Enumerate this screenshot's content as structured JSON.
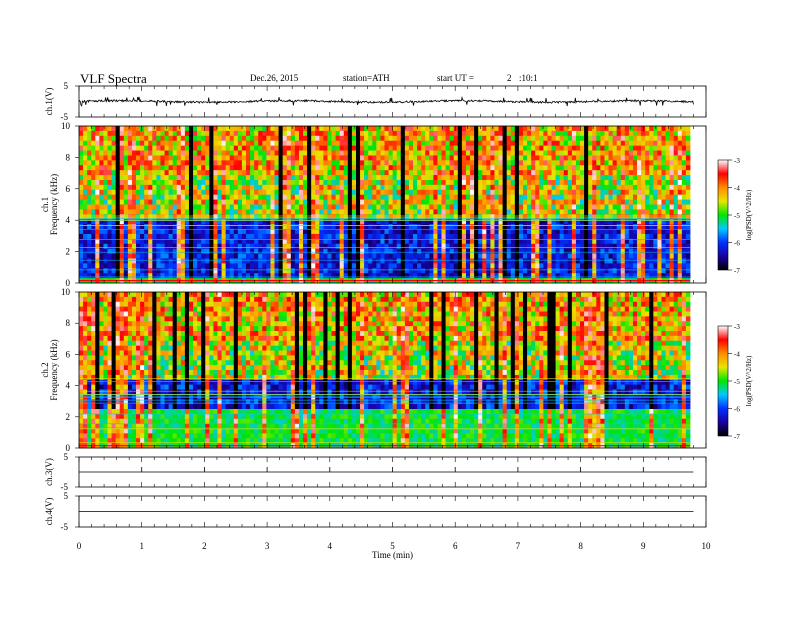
{
  "header": {
    "title": "VLF  Spectra",
    "date": "Dec.26, 2015",
    "station": "station=ATH",
    "start_label": "start  UT  =",
    "start_h": "2",
    "start_ms": ":10:1"
  },
  "colorbar": {
    "label": "log(PSD(V^2/Hz)",
    "ticks": [
      "-3",
      "-4",
      "-5",
      "-6",
      "-7"
    ],
    "stops": [
      "#000000",
      "#1a00a0",
      "#0030ff",
      "#00c8ff",
      "#00e600",
      "#e6e600",
      "#ff8c00",
      "#ff0000",
      "#ffffff"
    ]
  },
  "chart_data": [
    {
      "type": "line",
      "panel": "ch1-waveform",
      "ylabel": "ch.1(V)",
      "ylim": [
        -5,
        5
      ],
      "yticks": [
        "5",
        "-5"
      ],
      "xlim": [
        0,
        10
      ],
      "signal_range": [
        -1.5,
        1.5
      ],
      "baseline": 0,
      "x_end": 9.8
    },
    {
      "type": "heatmap",
      "panel": "ch1-spectrogram",
      "ylabel_top": "ch.1",
      "ylabel": "Frequency (kHz)",
      "ylim": [
        0,
        10
      ],
      "yticks": [
        "0",
        "2",
        "4",
        "6",
        "8",
        "10"
      ],
      "xlim": [
        0,
        9.8
      ],
      "zlim": [
        -7,
        -3
      ],
      "quiet_band_khz": [
        0.2,
        4
      ]
    },
    {
      "type": "heatmap",
      "panel": "ch2-spectrogram",
      "ylabel_top": "ch.2",
      "ylabel": "Frequency (kHz)",
      "ylim": [
        0,
        10
      ],
      "yticks": [
        "0",
        "2",
        "4",
        "6",
        "8",
        "10"
      ],
      "xlim": [
        0,
        9.8
      ],
      "zlim": [
        -7,
        -3
      ],
      "quiet_band_khz": [
        2.5,
        4.5
      ]
    },
    {
      "type": "line",
      "panel": "ch3-waveform",
      "ylabel": "ch.3(V)",
      "ylim": [
        -5,
        5
      ],
      "yticks": [
        "5",
        "-5"
      ],
      "baseline": 0,
      "x_end": 9.8
    },
    {
      "type": "line",
      "panel": "ch4-waveform",
      "ylabel": "ch.4(V)",
      "ylim": [
        -5,
        5
      ],
      "yticks": [
        "5",
        "-5"
      ],
      "baseline": 0,
      "x_end": 9.8
    }
  ],
  "xaxis": {
    "label": "Time  (min)",
    "ticks": [
      "0",
      "1",
      "2",
      "3",
      "4",
      "5",
      "6",
      "7",
      "8",
      "9",
      "10"
    ],
    "xlim": [
      0,
      10
    ]
  }
}
